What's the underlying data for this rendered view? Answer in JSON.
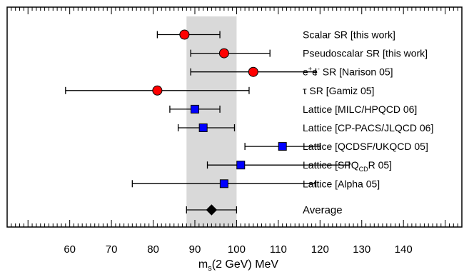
{
  "chart_data": {
    "type": "scatter",
    "subtype": "horizontal-errorbar-comparison",
    "title": "",
    "xlabel": "m_s(2 GeV) MeV",
    "xlabel_parts": {
      "main": "m",
      "sub": "s",
      "rest": "(2 GeV) MeV"
    },
    "xlim": [
      45,
      154
    ],
    "x_ticks": [
      60,
      70,
      80,
      90,
      100,
      110,
      120,
      130,
      140
    ],
    "band": {
      "lo": 88,
      "hi": 100,
      "color": "#d9d9d9"
    },
    "grid": false,
    "entries": [
      {
        "label": "Scalar SR [this work]",
        "value": 87.5,
        "err_lo": 81,
        "err_hi": 96,
        "marker": "circle",
        "color": "#ff0000"
      },
      {
        "label": "Pseudoscalar SR [this work]",
        "value": 97,
        "err_lo": 89,
        "err_hi": 108,
        "marker": "circle",
        "color": "#ff0000"
      },
      {
        "label": "e+e- SR [Narison 05]",
        "label_parts": {
          "a": "e",
          "a_sup": "+",
          "b": "e",
          "b_sup": "-",
          "rest": " SR [Narison 05]"
        },
        "value": 104,
        "err_lo": 89,
        "err_hi": 119,
        "marker": "circle",
        "color": "#ff0000"
      },
      {
        "label": "τ SR [Gamiz 05]",
        "value": 81,
        "err_lo": 59,
        "err_hi": 103,
        "marker": "circle",
        "color": "#ff0000"
      },
      {
        "label": "Lattice [MILC/HPQCD 06]",
        "value": 90,
        "err_lo": 84,
        "err_hi": 96,
        "marker": "square",
        "color": "#0000ff"
      },
      {
        "label": "Lattice [CP-PACS/JLQCD 06]",
        "value": 92,
        "err_lo": 86,
        "err_hi": 99.5,
        "marker": "square",
        "color": "#0000ff"
      },
      {
        "label": "Lattice [QCDSF/UKQCD 05]",
        "value": 111,
        "err_lo": 102,
        "err_hi": 120,
        "marker": "square",
        "color": "#0000ff"
      },
      {
        "label": "Lattice [SPQCDR 05]",
        "label_parts": {
          "pre": "Lattice [SPQ",
          "sub": "CD",
          "post": "R 05]"
        },
        "value": 101,
        "err_lo": 93,
        "err_hi": 127,
        "marker": "square",
        "color": "#0000ff"
      },
      {
        "label": "Lattice [Alpha 05]",
        "value": 97,
        "err_lo": 75,
        "err_hi": 119,
        "marker": "square",
        "color": "#0000ff"
      },
      {
        "label": "Average",
        "value": 94,
        "err_lo": 88,
        "err_hi": 100,
        "marker": "diamond",
        "color": "#000000"
      }
    ]
  }
}
